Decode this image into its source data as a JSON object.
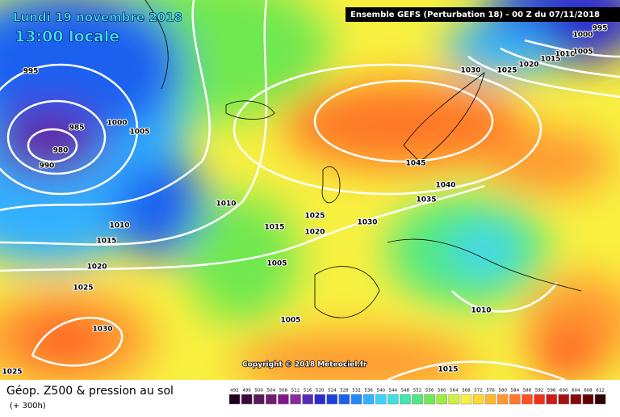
{
  "header": {
    "title": "Lundi 19 novembre 2018",
    "time": "13:00 locale",
    "run": "Ensemble GEFS  (Perturbation 18)  - 00 Z du 07/11/2018"
  },
  "isobar_labels": [
    "995",
    "985",
    "980",
    "990",
    "1000",
    "1005",
    "1010",
    "1010",
    "1015",
    "1020",
    "1025",
    "1030",
    "1025",
    "1015",
    "1005",
    "1005",
    "1025",
    "1020",
    "1030",
    "1035",
    "1040",
    "1045",
    "1030",
    "1025",
    "1020",
    "1015",
    "1010",
    "1005",
    "1000",
    "995",
    "1010",
    "1015"
  ],
  "copyright": "Copyright © 2018 Meteociel.fr",
  "footer": {
    "title": "Géop. Z500 & pression au sol",
    "lead": "(+ 300h)"
  },
  "colorbar": {
    "labels": [
      "492",
      "496",
      "500",
      "504",
      "508",
      "512",
      "516",
      "520",
      "524",
      "528",
      "532",
      "536",
      "540",
      "544",
      "548",
      "552",
      "556",
      "560",
      "564",
      "568",
      "572",
      "576",
      "580",
      "584",
      "588",
      "592",
      "596",
      "600",
      "604",
      "608",
      "612"
    ],
    "colors": [
      "#200020",
      "#3a0a3a",
      "#5a1a5a",
      "#701a70",
      "#801888",
      "#8a2aa0",
      "#5a2ab8",
      "#2a2ad0",
      "#1a40e0",
      "#1a60f0",
      "#2088f8",
      "#30b0ff",
      "#40d0ff",
      "#40e0e0",
      "#40e8b0",
      "#50e880",
      "#70e850",
      "#a0ec40",
      "#d0f040",
      "#f8f040",
      "#ffd830",
      "#ffb830",
      "#ff9830",
      "#ff7828",
      "#ff5020",
      "#f03018",
      "#d01818",
      "#a81010",
      "#880808",
      "#600404",
      "#300000"
    ]
  }
}
